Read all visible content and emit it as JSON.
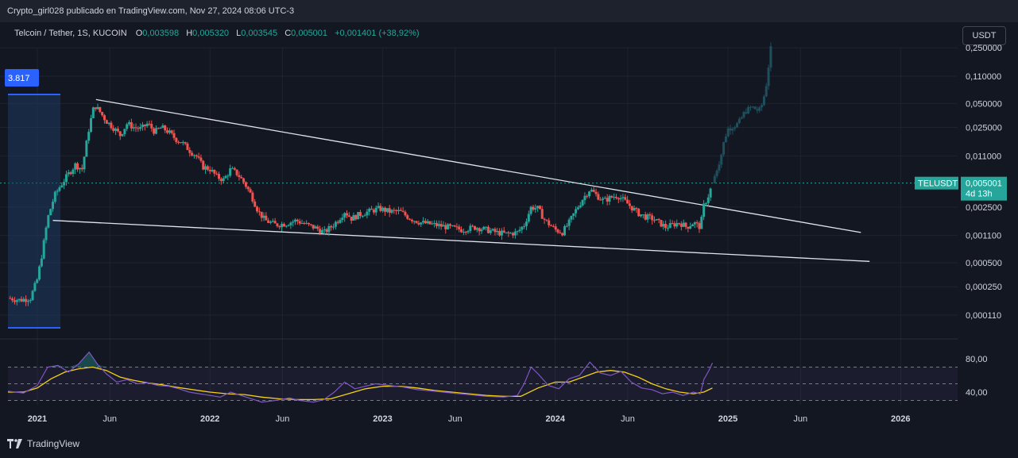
{
  "header": {
    "publisher": "Crypto_girl028 publicado en TradingView.com, Nov 27, 2024 08:06 UTC-3"
  },
  "legend": {
    "symbol": "Telcoin / Tether, 1S, KUCOIN",
    "open_key": "O",
    "open": "0,003598",
    "high_key": "H",
    "high": "0,005320",
    "low_key": "L",
    "low": "0,003545",
    "close_key": "C",
    "close": "0,005001",
    "change": "+0,001401 (+38,92%)"
  },
  "currency_button": "USDT",
  "left_marker": "3.817",
  "price_label": {
    "symbol": "TELUSDT",
    "price": "0,005001",
    "countdown": "4d 13h"
  },
  "colors": {
    "up": "#26a69a",
    "down": "#ef5350",
    "ghost": "#1f4f5c",
    "rsi": "#7e57c2",
    "rsi_ma": "#f7d117",
    "trendline": "#e0e3eb"
  },
  "footer": {
    "brand": "TradingView"
  },
  "chart_data": {
    "type": "candlestick",
    "title": "Telcoin / Tether, 1S, KUCOIN",
    "price_scale": "log",
    "y_ticks": [
      "0,250000",
      "0,110000",
      "0,050000",
      "0,025000",
      "0,011000",
      "0,005001",
      "0,002500",
      "0,001100",
      "0,000500",
      "0,000250",
      "0,000110"
    ],
    "y_tick_values": [
      0.25,
      0.11,
      0.05,
      0.025,
      0.011,
      0.005001,
      0.0025,
      0.0011,
      0.0005,
      0.00025,
      0.00011
    ],
    "x_ticks": [
      "2021",
      "Jun",
      "2022",
      "Jun",
      "2023",
      "Jun",
      "2024",
      "Jun",
      "2025",
      "Jun",
      "2026"
    ],
    "x_tick_times": [
      2021.0,
      2021.42,
      2022.0,
      2022.42,
      2023.0,
      2023.42,
      2024.0,
      2024.42,
      2025.0,
      2025.42,
      2026.0
    ],
    "x_range": [
      2020.83,
      2026.33
    ],
    "last_close": 0.005001,
    "price_series": [
      [
        2020.83,
        0.00018
      ],
      [
        2020.9,
        0.00017
      ],
      [
        2020.96,
        0.00018
      ],
      [
        2021.0,
        0.00031
      ],
      [
        2021.03,
        0.0007
      ],
      [
        2021.06,
        0.0018
      ],
      [
        2021.1,
        0.0035
      ],
      [
        2021.13,
        0.0045
      ],
      [
        2021.18,
        0.0065
      ],
      [
        2021.22,
        0.0085
      ],
      [
        2021.26,
        0.0075
      ],
      [
        2021.3,
        0.025
      ],
      [
        2021.33,
        0.048
      ],
      [
        2021.36,
        0.04
      ],
      [
        2021.4,
        0.03
      ],
      [
        2021.44,
        0.025
      ],
      [
        2021.48,
        0.02
      ],
      [
        2021.52,
        0.028
      ],
      [
        2021.56,
        0.025
      ],
      [
        2021.6,
        0.024
      ],
      [
        2021.64,
        0.028
      ],
      [
        2021.68,
        0.022
      ],
      [
        2021.72,
        0.025
      ],
      [
        2021.76,
        0.022
      ],
      [
        2021.8,
        0.018
      ],
      [
        2021.84,
        0.016
      ],
      [
        2021.88,
        0.013
      ],
      [
        2021.92,
        0.011
      ],
      [
        2021.96,
        0.008
      ],
      [
        2022.0,
        0.0075
      ],
      [
        2022.04,
        0.006
      ],
      [
        2022.08,
        0.0055
      ],
      [
        2022.12,
        0.0075
      ],
      [
        2022.16,
        0.0065
      ],
      [
        2022.2,
        0.005
      ],
      [
        2022.24,
        0.0035
      ],
      [
        2022.28,
        0.0022
      ],
      [
        2022.32,
        0.0017
      ],
      [
        2022.38,
        0.0015
      ],
      [
        2022.44,
        0.00155
      ],
      [
        2022.5,
        0.0017
      ],
      [
        2022.56,
        0.0015
      ],
      [
        2022.62,
        0.00135
      ],
      [
        2022.66,
        0.0012
      ],
      [
        2022.7,
        0.0014
      ],
      [
        2022.74,
        0.0017
      ],
      [
        2022.78,
        0.0022
      ],
      [
        2022.82,
        0.0018
      ],
      [
        2022.86,
        0.002
      ],
      [
        2022.92,
        0.0022
      ],
      [
        2022.98,
        0.0024
      ],
      [
        2023.04,
        0.0022
      ],
      [
        2023.1,
        0.0022
      ],
      [
        2023.16,
        0.0018
      ],
      [
        2023.22,
        0.0016
      ],
      [
        2023.3,
        0.0015
      ],
      [
        2023.38,
        0.0014
      ],
      [
        2023.46,
        0.0013
      ],
      [
        2023.54,
        0.0014
      ],
      [
        2023.6,
        0.0013
      ],
      [
        2023.66,
        0.0012
      ],
      [
        2023.72,
        0.00115
      ],
      [
        2023.78,
        0.0012
      ],
      [
        2023.82,
        0.0015
      ],
      [
        2023.86,
        0.0025
      ],
      [
        2023.9,
        0.0024
      ],
      [
        2023.94,
        0.0017
      ],
      [
        2024.0,
        0.0013
      ],
      [
        2024.04,
        0.0012
      ],
      [
        2024.08,
        0.0016
      ],
      [
        2024.12,
        0.0023
      ],
      [
        2024.16,
        0.0032
      ],
      [
        2024.2,
        0.0042
      ],
      [
        2024.24,
        0.0035
      ],
      [
        2024.28,
        0.003
      ],
      [
        2024.32,
        0.0033
      ],
      [
        2024.36,
        0.0035
      ],
      [
        2024.4,
        0.003
      ],
      [
        2024.44,
        0.0025
      ],
      [
        2024.48,
        0.0021
      ],
      [
        2024.52,
        0.0019
      ],
      [
        2024.56,
        0.0018
      ],
      [
        2024.6,
        0.0016
      ],
      [
        2024.64,
        0.0014
      ],
      [
        2024.68,
        0.0015
      ],
      [
        2024.72,
        0.0016
      ],
      [
        2024.76,
        0.0014
      ],
      [
        2024.8,
        0.0016
      ],
      [
        2024.84,
        0.0014
      ],
      [
        2024.86,
        0.0026
      ],
      [
        2024.89,
        0.0036
      ],
      [
        2024.91,
        0.005
      ]
    ],
    "projection_series": [
      [
        2024.91,
        0.005
      ],
      [
        2024.94,
        0.008
      ],
      [
        2024.96,
        0.011
      ],
      [
        2024.98,
        0.018
      ],
      [
        2025.0,
        0.024
      ],
      [
        2025.03,
        0.026
      ],
      [
        2025.06,
        0.028
      ],
      [
        2025.1,
        0.04
      ],
      [
        2025.14,
        0.045
      ],
      [
        2025.18,
        0.04
      ],
      [
        2025.2,
        0.05
      ],
      [
        2025.22,
        0.08
      ],
      [
        2025.24,
        0.18
      ],
      [
        2025.25,
        0.26
      ]
    ],
    "trendlines": [
      {
        "name": "upper",
        "points": [
          [
            2021.34,
            0.056
          ],
          [
            2025.77,
            0.0012
          ]
        ]
      },
      {
        "name": "lower",
        "points": [
          [
            2021.09,
            0.0017
          ],
          [
            2025.82,
            0.00052
          ]
        ]
      }
    ],
    "rsi": {
      "levels_labels": [
        "80,00",
        "40,00"
      ],
      "level_values": [
        80,
        40
      ],
      "range": [
        22,
        98
      ],
      "bands": [
        70,
        50,
        30
      ],
      "rsi_series": [
        [
          2020.83,
          41
        ],
        [
          2020.92,
          39
        ],
        [
          2021.0,
          48
        ],
        [
          2021.06,
          70
        ],
        [
          2021.12,
          72
        ],
        [
          2021.18,
          64
        ],
        [
          2021.24,
          74
        ],
        [
          2021.3,
          88
        ],
        [
          2021.35,
          73
        ],
        [
          2021.4,
          62
        ],
        [
          2021.46,
          52
        ],
        [
          2021.52,
          55
        ],
        [
          2021.58,
          50
        ],
        [
          2021.64,
          51
        ],
        [
          2021.7,
          48
        ],
        [
          2021.76,
          47
        ],
        [
          2021.82,
          44
        ],
        [
          2021.88,
          40
        ],
        [
          2021.94,
          38
        ],
        [
          2022.0,
          36
        ],
        [
          2022.06,
          34
        ],
        [
          2022.12,
          40
        ],
        [
          2022.18,
          36
        ],
        [
          2022.24,
          32
        ],
        [
          2022.3,
          28
        ],
        [
          2022.38,
          30
        ],
        [
          2022.46,
          33
        ],
        [
          2022.52,
          30
        ],
        [
          2022.6,
          28
        ],
        [
          2022.66,
          31
        ],
        [
          2022.72,
          40
        ],
        [
          2022.78,
          52
        ],
        [
          2022.84,
          44
        ],
        [
          2022.9,
          47
        ],
        [
          2022.96,
          50
        ],
        [
          2023.04,
          48
        ],
        [
          2023.12,
          46
        ],
        [
          2023.2,
          43
        ],
        [
          2023.3,
          41
        ],
        [
          2023.4,
          39
        ],
        [
          2023.5,
          37
        ],
        [
          2023.6,
          35
        ],
        [
          2023.7,
          34
        ],
        [
          2023.78,
          36
        ],
        [
          2023.82,
          50
        ],
        [
          2023.86,
          70
        ],
        [
          2023.9,
          62
        ],
        [
          2023.96,
          48
        ],
        [
          2024.02,
          44
        ],
        [
          2024.08,
          56
        ],
        [
          2024.14,
          60
        ],
        [
          2024.2,
          76
        ],
        [
          2024.26,
          63
        ],
        [
          2024.32,
          60
        ],
        [
          2024.38,
          65
        ],
        [
          2024.44,
          52
        ],
        [
          2024.5,
          45
        ],
        [
          2024.56,
          43
        ],
        [
          2024.62,
          38
        ],
        [
          2024.68,
          40
        ],
        [
          2024.74,
          36
        ],
        [
          2024.8,
          40
        ],
        [
          2024.84,
          38
        ],
        [
          2024.86,
          55
        ],
        [
          2024.89,
          66
        ],
        [
          2024.91,
          75
        ]
      ],
      "ma_series": [
        [
          2020.83,
          40
        ],
        [
          2020.92,
          40
        ],
        [
          2021.0,
          45
        ],
        [
          2021.08,
          56
        ],
        [
          2021.16,
          64
        ],
        [
          2021.24,
          68
        ],
        [
          2021.32,
          70
        ],
        [
          2021.4,
          66
        ],
        [
          2021.48,
          58
        ],
        [
          2021.56,
          54
        ],
        [
          2021.64,
          51
        ],
        [
          2021.72,
          49
        ],
        [
          2021.8,
          46
        ],
        [
          2021.9,
          43
        ],
        [
          2022.0,
          40
        ],
        [
          2022.1,
          38
        ],
        [
          2022.2,
          37
        ],
        [
          2022.3,
          34
        ],
        [
          2022.4,
          32
        ],
        [
          2022.5,
          31
        ],
        [
          2022.6,
          31
        ],
        [
          2022.7,
          32
        ],
        [
          2022.8,
          38
        ],
        [
          2022.9,
          44
        ],
        [
          2023.0,
          47
        ],
        [
          2023.1,
          47
        ],
        [
          2023.2,
          45
        ],
        [
          2023.3,
          42
        ],
        [
          2023.4,
          40
        ],
        [
          2023.5,
          38
        ],
        [
          2023.6,
          36
        ],
        [
          2023.7,
          35
        ],
        [
          2023.8,
          35
        ],
        [
          2023.9,
          45
        ],
        [
          2024.0,
          52
        ],
        [
          2024.08,
          52
        ],
        [
          2024.16,
          58
        ],
        [
          2024.24,
          64
        ],
        [
          2024.32,
          66
        ],
        [
          2024.4,
          64
        ],
        [
          2024.48,
          58
        ],
        [
          2024.56,
          50
        ],
        [
          2024.64,
          44
        ],
        [
          2024.72,
          40
        ],
        [
          2024.8,
          38
        ],
        [
          2024.86,
          40
        ],
        [
          2024.91,
          45
        ]
      ]
    }
  }
}
